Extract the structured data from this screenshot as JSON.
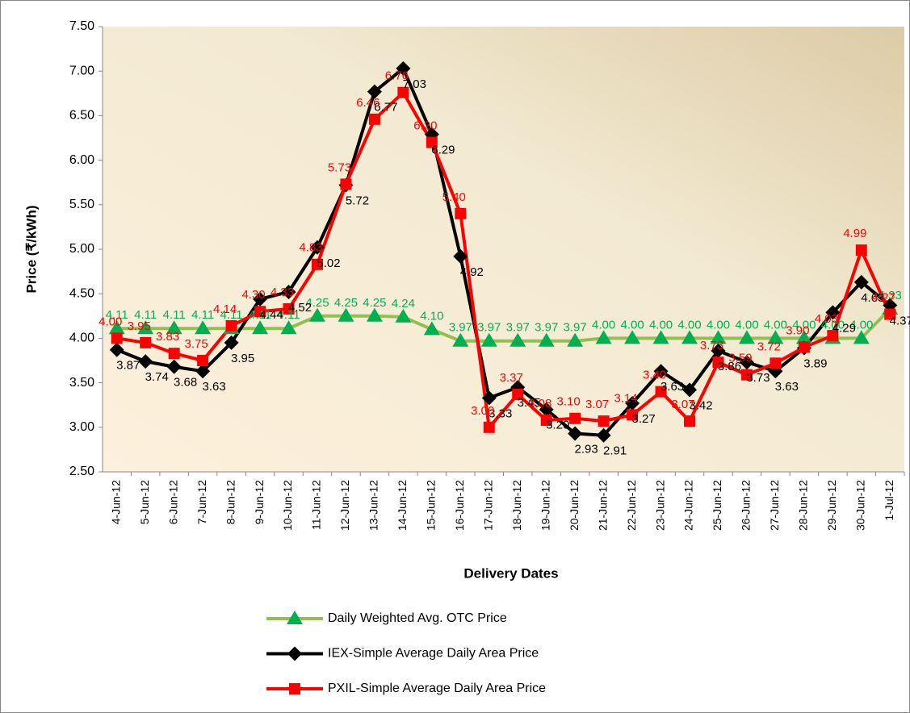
{
  "chart_data": {
    "type": "line",
    "y_label": "Price (₹/kWh)",
    "x_label": "Delivery Dates",
    "categories": [
      "4-Jun-12",
      "5-Jun-12",
      "6-Jun-12",
      "7-Jun-12",
      "8-Jun-12",
      "9-Jun-12",
      "10-Jun-12",
      "11-Jun-12",
      "12-Jun-12",
      "13-Jun-12",
      "14-Jun-12",
      "15-Jun-12",
      "16-Jun-12",
      "17-Jun-12",
      "18-Jun-12",
      "19-Jun-12",
      "20-Jun-12",
      "21-Jun-12",
      "22-Jun-12",
      "23-Jun-12",
      "24-Jun-12",
      "25-Jun-12",
      "26-Jun-12",
      "27-Jun-12",
      "28-Jun-12",
      "29-Jun-12",
      "30-Jun-12",
      "1-Jul-12"
    ],
    "ylim": [
      2.5,
      7.5
    ],
    "yticks": [
      {
        "value": 2.5,
        "label": "2.50"
      },
      {
        "value": 3,
        "label": "3.00"
      },
      {
        "value": 3.5,
        "label": "3.50"
      },
      {
        "value": 4,
        "label": "4.00"
      },
      {
        "value": 4.5,
        "label": "4.50"
      },
      {
        "value": 5,
        "label": "5.00"
      },
      {
        "value": 5.5,
        "label": "5.50"
      },
      {
        "value": 6,
        "label": "6.00"
      },
      {
        "value": 6.5,
        "label": "6.50"
      },
      {
        "value": 7,
        "label": "7.00"
      },
      {
        "value": 7.5,
        "label": "7.50"
      }
    ],
    "series": [
      {
        "name": "Daily Weighted Avg. OTC Price",
        "color": "#92c050",
        "marker_color": "#00b050",
        "label_color": "#00b050",
        "marker": "triangle",
        "values": [
          4.11,
          4.11,
          4.11,
          4.11,
          4.11,
          4.11,
          4.11,
          4.25,
          4.25,
          4.25,
          4.24,
          4.1,
          3.97,
          3.97,
          3.97,
          3.97,
          3.97,
          4,
          4,
          4,
          4,
          4,
          4,
          4,
          4,
          4,
          4,
          4.33
        ],
        "value_labels": [
          "4.11",
          "4.11",
          "4.11",
          "4.11",
          "4.11",
          "4.11",
          "4.11",
          "4.25",
          "4.25",
          "4.25",
          "4.24",
          "4.10",
          "3.97",
          "3.97",
          "3.97",
          "3.97",
          "3.97",
          "4.00",
          "4.00",
          "4.00",
          "4.00",
          "4.00",
          "4.00",
          "4.00",
          "4.00",
          "4.00",
          "4.00",
          "4.33"
        ]
      },
      {
        "name": "IEX-Simple Average Daily Area Price",
        "color": "#000000",
        "marker_color": "#000000",
        "label_color": "#000000",
        "marker": "diamond",
        "values": [
          3.87,
          3.74,
          3.68,
          3.63,
          3.95,
          4.44,
          4.52,
          5.02,
          5.72,
          6.77,
          7.03,
          6.29,
          4.92,
          3.33,
          3.45,
          3.2,
          2.93,
          2.91,
          3.27,
          3.63,
          3.42,
          3.86,
          3.73,
          3.63,
          3.89,
          4.29,
          4.63,
          4.37
        ],
        "value_labels": [
          "3.87",
          "3.74",
          "3.68",
          "3.63",
          "3.95",
          "4.44",
          "4.52",
          "5.02",
          "5.72",
          "6.77",
          "7.03",
          "6.29",
          "4.92",
          "3.33",
          "3.45",
          "3.20",
          "2.93",
          "2.91",
          "3.27",
          "3.63",
          "3.42",
          "3.86",
          "3.73",
          "3.63",
          "3.89",
          "4.29",
          "4.63",
          "4.37"
        ]
      },
      {
        "name": "PXIL-Simple Average Daily Area Price",
        "color": "#ff0000",
        "marker_color": "#ff0000",
        "label_color": "#ff0000",
        "marker": "square",
        "values": [
          4,
          3.95,
          3.83,
          3.75,
          4.14,
          4.3,
          4.33,
          4.83,
          5.73,
          6.46,
          6.76,
          6.2,
          5.4,
          3,
          3.37,
          3.08,
          3.1,
          3.07,
          3.14,
          3.4,
          3.07,
          3.73,
          3.59,
          3.72,
          3.9,
          4.03,
          4.99,
          4.27
        ],
        "value_labels": [
          "4.00",
          "3.95",
          "3.83",
          "3.75",
          "4.14",
          "4.30",
          "4.33",
          "4.83",
          "5.73",
          "6.46",
          "6.76",
          "6.20",
          "5.40",
          "3.00",
          "3.37",
          "3.08",
          "3.10",
          "3.07",
          "3.14",
          "3.40",
          "3.07",
          "3.73",
          "3.59",
          "3.72",
          "3.90",
          "4.03",
          "4.99",
          "4.27"
        ]
      }
    ]
  }
}
